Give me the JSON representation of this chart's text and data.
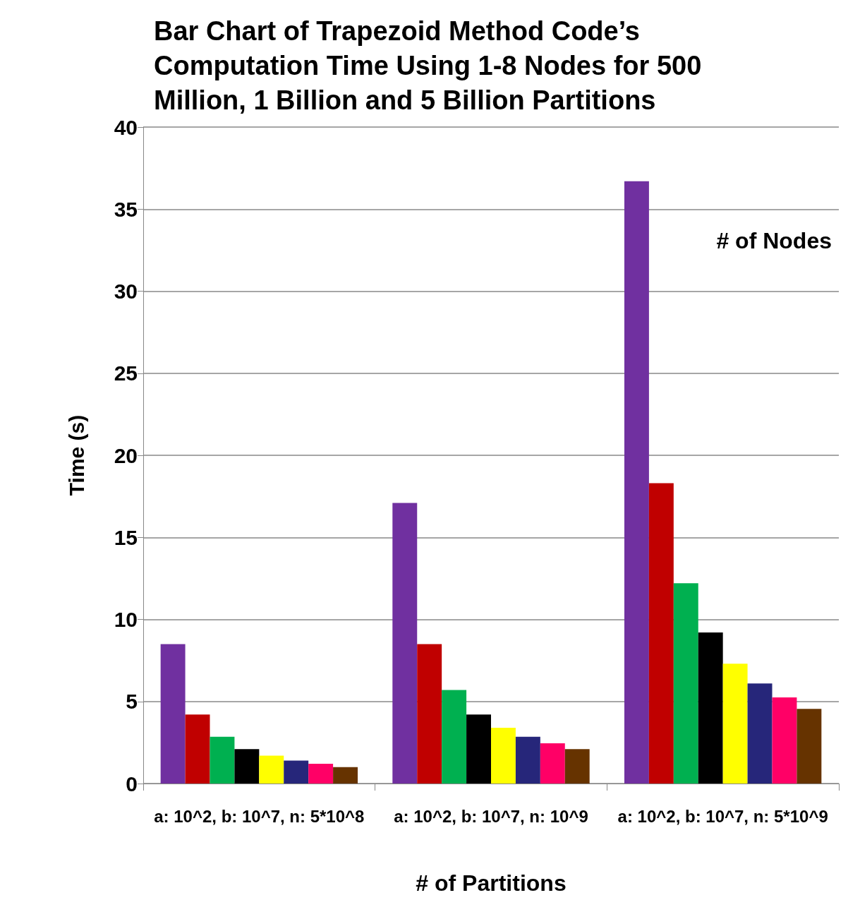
{
  "chart_data": {
    "type": "bar",
    "title": "Bar Chart of Trapezoid Method Code’s Computation Time Using 1-8 Nodes for 500 Million, 1 Billion and 5 Billion Partitions",
    "xlabel": "# of Partitions",
    "ylabel": "Time (s)",
    "annotations": [
      "# of Nodes"
    ],
    "categories": [
      "a: 10^2, b: 10^7, n: 5*10^8",
      "a: 10^2, b: 10^7, n: 10^9",
      "a: 10^2, b: 10^7, n: 5*10^9"
    ],
    "series": [
      {
        "color": "#7030a0",
        "values": [
          8.5,
          17.1,
          36.7
        ]
      },
      {
        "color": "#c00000",
        "values": [
          4.2,
          8.5,
          18.3
        ]
      },
      {
        "color": "#00b050",
        "values": [
          2.85,
          5.7,
          12.2
        ]
      },
      {
        "color": "#000000",
        "values": [
          2.1,
          4.2,
          9.2
        ]
      },
      {
        "color": "#ffff00",
        "values": [
          1.7,
          3.4,
          7.3
        ]
      },
      {
        "color": "#26267a",
        "values": [
          1.4,
          2.85,
          6.1
        ]
      },
      {
        "color": "#ff0066",
        "values": [
          1.2,
          2.45,
          5.25
        ]
      },
      {
        "color": "#663300",
        "values": [
          1.0,
          2.1,
          4.55
        ]
      }
    ],
    "ylim": [
      0,
      40
    ],
    "yticks": [
      0,
      5,
      10,
      15,
      20,
      25,
      30,
      35,
      40
    ],
    "grid": "y",
    "legend": false
  }
}
